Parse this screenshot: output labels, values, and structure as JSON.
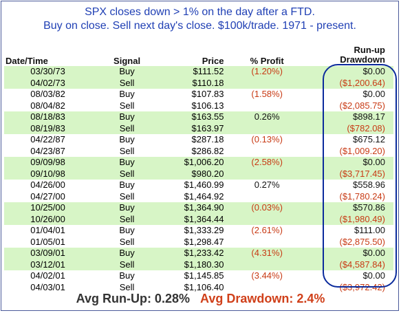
{
  "title": {
    "line1": "SPX closes down > 1% on the day after a FTD.",
    "line2": "Buy on close. Sell next day's close. $100k/trade. 1971 - present."
  },
  "headers": {
    "date": "Date/Time",
    "signal": "Signal",
    "price": "Price",
    "profit": "% Profit",
    "runup": "Run-up",
    "drawdown": "Drawdown"
  },
  "rows": [
    {
      "date": "03/30/73",
      "signal": "Buy",
      "price": "$111.52",
      "profit": "(1.20%)",
      "profit_neg": true,
      "rd": "$0.00",
      "rd_neg": false,
      "shade": true
    },
    {
      "date": "04/02/73",
      "signal": "Sell",
      "price": "$110.18",
      "profit": "",
      "profit_neg": false,
      "rd": "($1,200.64)",
      "rd_neg": true,
      "shade": true
    },
    {
      "date": "08/03/82",
      "signal": "Buy",
      "price": "$107.83",
      "profit": "(1.58%)",
      "profit_neg": true,
      "rd": "$0.00",
      "rd_neg": false,
      "shade": false
    },
    {
      "date": "08/04/82",
      "signal": "Sell",
      "price": "$106.13",
      "profit": "",
      "profit_neg": false,
      "rd": "($2,085.75)",
      "rd_neg": true,
      "shade": false
    },
    {
      "date": "08/18/83",
      "signal": "Buy",
      "price": "$163.55",
      "profit": "0.26%",
      "profit_neg": false,
      "rd": "$898.17",
      "rd_neg": false,
      "shade": true
    },
    {
      "date": "08/19/83",
      "signal": "Sell",
      "price": "$163.97",
      "profit": "",
      "profit_neg": false,
      "rd": "($782.08)",
      "rd_neg": true,
      "shade": true
    },
    {
      "date": "04/22/87",
      "signal": "Buy",
      "price": "$287.18",
      "profit": "(0.13%)",
      "profit_neg": true,
      "rd": "$675.12",
      "rd_neg": false,
      "shade": false
    },
    {
      "date": "04/23/87",
      "signal": "Sell",
      "price": "$286.82",
      "profit": "",
      "profit_neg": false,
      "rd": "($1,009.20)",
      "rd_neg": true,
      "shade": false
    },
    {
      "date": "09/09/98",
      "signal": "Buy",
      "price": "$1,006.20",
      "profit": "(2.58%)",
      "profit_neg": true,
      "rd": "$0.00",
      "rd_neg": false,
      "shade": true
    },
    {
      "date": "09/10/98",
      "signal": "Sell",
      "price": "$980.20",
      "profit": "",
      "profit_neg": false,
      "rd": "($3,717.45)",
      "rd_neg": true,
      "shade": true
    },
    {
      "date": "04/26/00",
      "signal": "Buy",
      "price": "$1,460.99",
      "profit": "0.27%",
      "profit_neg": false,
      "rd": "$558.96",
      "rd_neg": false,
      "shade": false
    },
    {
      "date": "04/27/00",
      "signal": "Sell",
      "price": "$1,464.92",
      "profit": "",
      "profit_neg": false,
      "rd": "($1,780.24)",
      "rd_neg": true,
      "shade": false
    },
    {
      "date": "10/25/00",
      "signal": "Buy",
      "price": "$1,364.90",
      "profit": "(0.03%)",
      "profit_neg": true,
      "rd": "$570.86",
      "rd_neg": false,
      "shade": true
    },
    {
      "date": "10/26/00",
      "signal": "Sell",
      "price": "$1,364.44",
      "profit": "",
      "profit_neg": false,
      "rd": "($1,980.49)",
      "rd_neg": true,
      "shade": true
    },
    {
      "date": "01/04/01",
      "signal": "Buy",
      "price": "$1,333.29",
      "profit": "(2.61%)",
      "profit_neg": true,
      "rd": "$111.00",
      "rd_neg": false,
      "shade": false
    },
    {
      "date": "01/05/01",
      "signal": "Sell",
      "price": "$1,298.47",
      "profit": "",
      "profit_neg": false,
      "rd": "($2,875.50)",
      "rd_neg": true,
      "shade": false
    },
    {
      "date": "03/09/01",
      "signal": "Buy",
      "price": "$1,233.42",
      "profit": "(4.31%)",
      "profit_neg": true,
      "rd": "$0.00",
      "rd_neg": false,
      "shade": true
    },
    {
      "date": "03/12/01",
      "signal": "Sell",
      "price": "$1,180.30",
      "profit": "",
      "profit_neg": false,
      "rd": "($4,587.84)",
      "rd_neg": true,
      "shade": true
    },
    {
      "date": "04/02/01",
      "signal": "Buy",
      "price": "$1,145.85",
      "profit": "(3.44%)",
      "profit_neg": true,
      "rd": "$0.00",
      "rd_neg": false,
      "shade": false
    },
    {
      "date": "04/03/01",
      "signal": "Sell",
      "price": "$1,106.40",
      "profit": "",
      "profit_neg": false,
      "rd": "($3,972.42)",
      "rd_neg": true,
      "shade": false
    }
  ],
  "summary": {
    "runup": "Avg Run-Up: 0.28%",
    "drawdown": "Avg Drawdown: 2.4%"
  },
  "colors": {
    "title": "#1f3fb4",
    "row_shade": "#d7f5c6",
    "negative": "#c83a14",
    "oval": "#0a2a9c",
    "frame": "#4a5a9a"
  }
}
